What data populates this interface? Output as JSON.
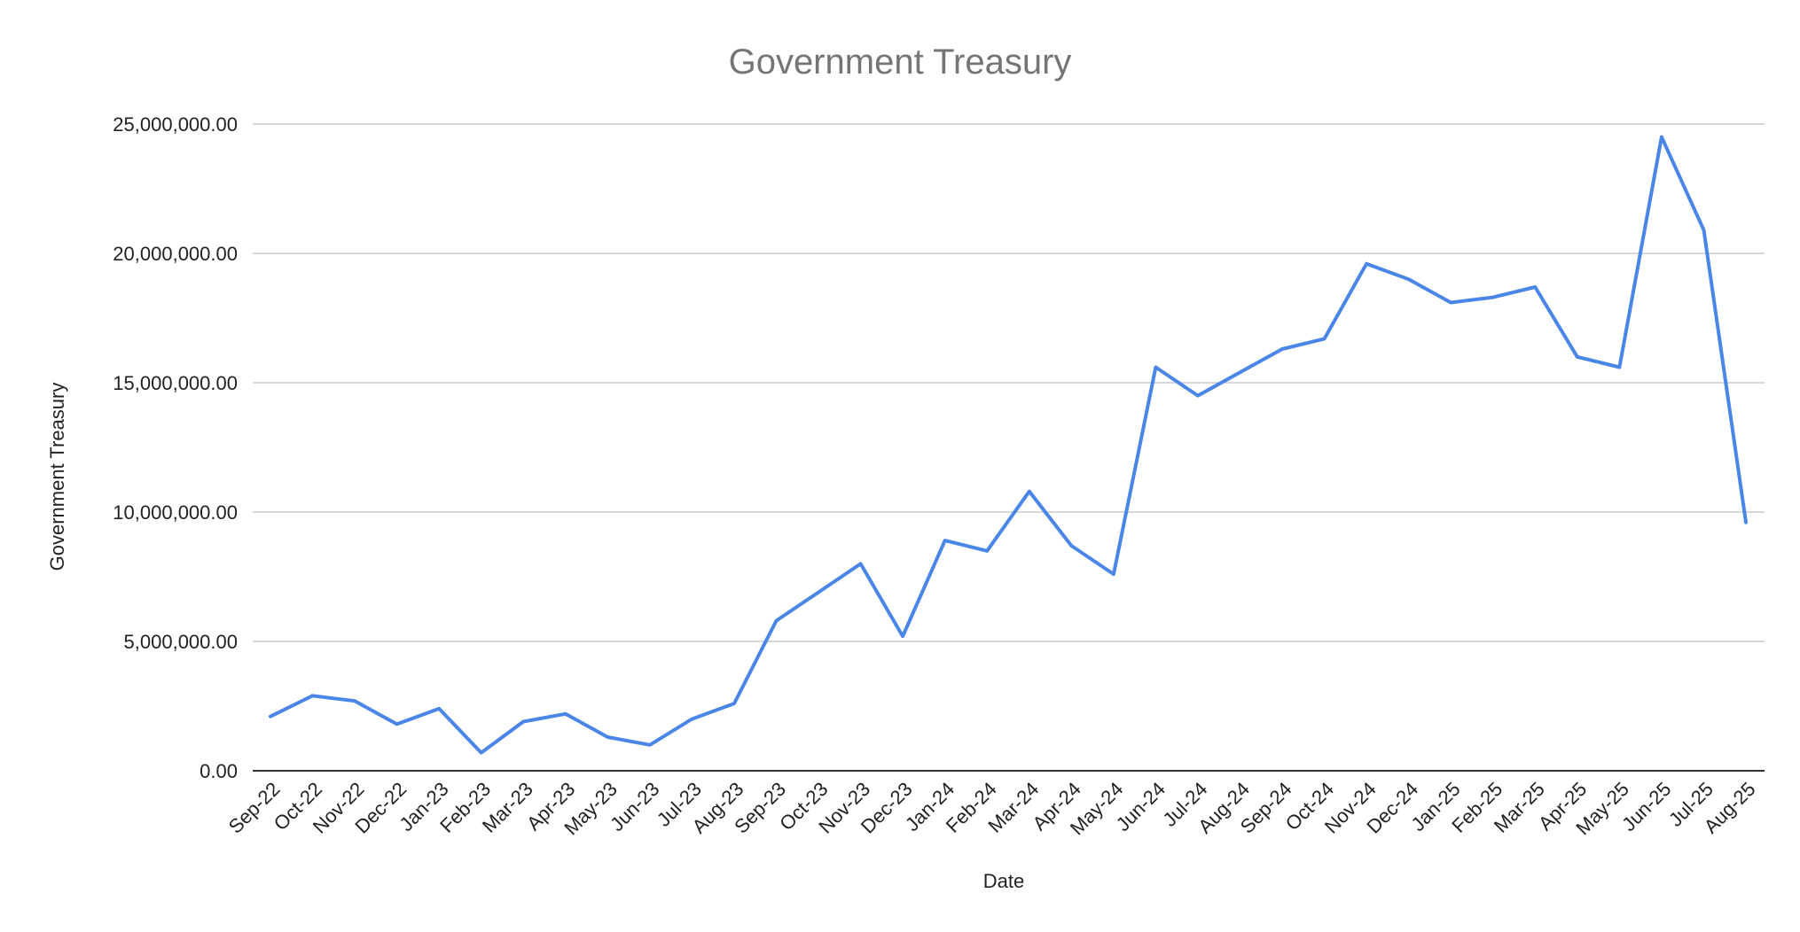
{
  "chart_data": {
    "type": "line",
    "title": "Government Treasury",
    "xlabel": "Date",
    "ylabel": "Government Treasury",
    "ylim": [
      0,
      25000000
    ],
    "yticks": [
      0,
      5000000,
      10000000,
      15000000,
      20000000,
      25000000
    ],
    "ytick_labels": [
      "0.00",
      "5,000,000.00",
      "10,000,000.00",
      "15,000,000.00",
      "20,000,000.00",
      "25,000,000.00"
    ],
    "grid": true,
    "legend": "none",
    "categories": [
      "Sep-22",
      "Oct-22",
      "Nov-22",
      "Dec-22",
      "Jan-23",
      "Feb-23",
      "Mar-23",
      "Apr-23",
      "May-23",
      "Jun-23",
      "Jul-23",
      "Aug-23",
      "Sep-23",
      "Oct-23",
      "Nov-23",
      "Dec-23",
      "Jan-24",
      "Feb-24",
      "Mar-24",
      "Apr-24",
      "May-24",
      "Jun-24",
      "Jul-24",
      "Aug-24",
      "Sep-24",
      "Oct-24",
      "Nov-24",
      "Dec-24",
      "Jan-25",
      "Feb-25",
      "Mar-25",
      "Apr-25",
      "May-25",
      "Jun-25",
      "Jul-25",
      "Aug-25"
    ],
    "series": [
      {
        "color": "#4a86e8",
        "values": [
          2100000,
          2900000,
          2700000,
          1800000,
          2400000,
          700000,
          1900000,
          2200000,
          1300000,
          1000000,
          2000000,
          2600000,
          5800000,
          6900000,
          8000000,
          5200000,
          8900000,
          8500000,
          10800000,
          8700000,
          7600000,
          15600000,
          14500000,
          15400000,
          16300000,
          16700000,
          19600000,
          19000000,
          18100000,
          18300000,
          18700000,
          16000000,
          15600000,
          24500000,
          20900000,
          9600000
        ]
      }
    ]
  }
}
